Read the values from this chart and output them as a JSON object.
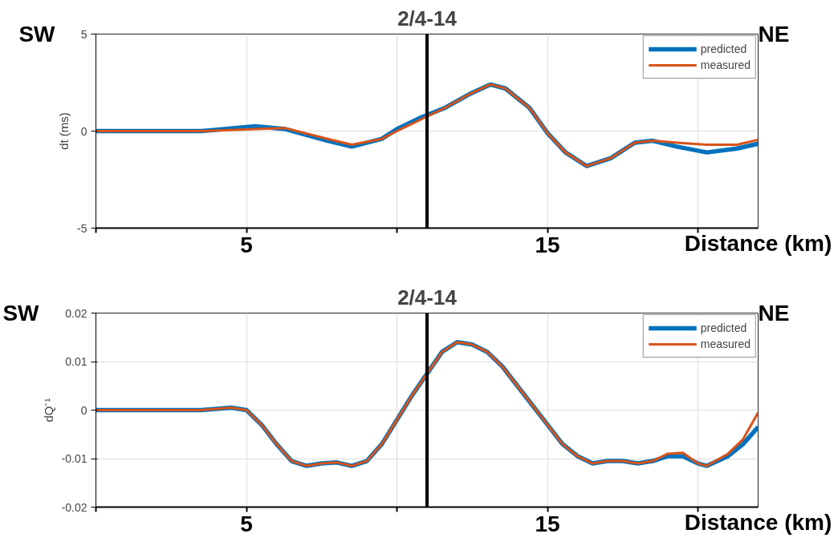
{
  "chart_data": [
    {
      "type": "line",
      "title": "2/4-14",
      "xlabel": "Distance (km)",
      "ylabel": "dt (ms)",
      "annotations": [
        "SW",
        "NE"
      ],
      "x": [
        0,
        3.5,
        5.3,
        6.3,
        7.7,
        8.5,
        9.5,
        10,
        10.8,
        11.6,
        12.4,
        13.1,
        13.6,
        14.4,
        15,
        15.6,
        16.3,
        17.1,
        17.9,
        18.5,
        19.3,
        20.3,
        21.3,
        22
      ],
      "series": [
        {
          "name": "predicted",
          "color": "#0072bd",
          "values": [
            0,
            0,
            0.25,
            0.1,
            -0.5,
            -0.8,
            -0.4,
            0.1,
            0.7,
            1.2,
            1.9,
            2.4,
            2.2,
            1.2,
            -0.1,
            -1.1,
            -1.8,
            -1.4,
            -0.6,
            -0.5,
            -0.8,
            -1.1,
            -0.9,
            -0.65
          ]
        },
        {
          "name": "measured",
          "color": "#d95319",
          "values": [
            0,
            0,
            0.1,
            0.15,
            -0.4,
            -0.7,
            -0.4,
            0.0,
            0.6,
            1.2,
            1.9,
            2.4,
            2.2,
            1.2,
            -0.1,
            -1.1,
            -1.8,
            -1.4,
            -0.6,
            -0.5,
            -0.6,
            -0.7,
            -0.7,
            -0.45
          ]
        }
      ],
      "xlim": [
        0,
        22
      ],
      "ylim": [
        -5,
        5
      ],
      "yticks": [
        -5,
        0,
        5
      ],
      "xticks": [
        {
          "value": 0,
          "label": null
        },
        5,
        {
          "value": 10,
          "label": null
        },
        15,
        {
          "value": 20,
          "label": null
        }
      ],
      "ref_lines": [
        {
          "axis": "x",
          "value": 11,
          "label": null,
          "color": "#000000"
        }
      ],
      "grid": true,
      "legend": "top right",
      "line_style": "solid",
      "marker": "none"
    },
    {
      "type": "line",
      "title": "2/4-14",
      "xlabel": "Distance (km)",
      "ylabel": "dQ⁻¹",
      "annotations": [
        "SW",
        "NE"
      ],
      "x": [
        0,
        3.5,
        4.5,
        5,
        5.5,
        6,
        6.5,
        7,
        7.5,
        8,
        8.5,
        9,
        9.5,
        10,
        10.5,
        11,
        11.5,
        12,
        12.5,
        13,
        13.5,
        14,
        14.5,
        15,
        15.5,
        16,
        16.5,
        17,
        17.5,
        18,
        18.5,
        19,
        19.5,
        20,
        20.3,
        21,
        21.5,
        22
      ],
      "series": [
        {
          "name": "predicted",
          "color": "#0072bd",
          "values": [
            0,
            0,
            0.0005,
            0,
            -0.003,
            -0.007,
            -0.0105,
            -0.0115,
            -0.011,
            -0.0108,
            -0.0115,
            -0.0105,
            -0.007,
            -0.002,
            0.003,
            0.0075,
            0.012,
            0.014,
            0.0135,
            0.012,
            0.009,
            0.005,
            0.001,
            -0.003,
            -0.007,
            -0.0095,
            -0.011,
            -0.0105,
            -0.0105,
            -0.011,
            -0.0105,
            -0.0095,
            -0.0095,
            -0.011,
            -0.0115,
            -0.0095,
            -0.007,
            -0.0035
          ]
        },
        {
          "name": "measured",
          "color": "#d95319",
          "values": [
            0,
            0,
            0.0005,
            0,
            -0.003,
            -0.007,
            -0.0105,
            -0.0115,
            -0.011,
            -0.0108,
            -0.0115,
            -0.0105,
            -0.007,
            -0.002,
            0.003,
            0.0075,
            0.012,
            0.014,
            0.0135,
            0.012,
            0.009,
            0.005,
            0.001,
            -0.003,
            -0.007,
            -0.0095,
            -0.011,
            -0.0105,
            -0.0105,
            -0.011,
            -0.0105,
            -0.009,
            -0.0088,
            -0.011,
            -0.0115,
            -0.009,
            -0.006,
            -0.0005
          ]
        }
      ],
      "xlim": [
        0,
        22
      ],
      "ylim": [
        -0.02,
        0.02
      ],
      "yticks": [
        -0.02,
        -0.01,
        0,
        0.01,
        0.02
      ],
      "xticks": [
        {
          "value": 0,
          "label": null
        },
        5,
        {
          "value": 10,
          "label": null
        },
        15,
        {
          "value": 20,
          "label": null
        }
      ],
      "ref_lines": [
        {
          "axis": "x",
          "value": 11,
          "label": null,
          "color": "#000000"
        }
      ],
      "grid": true,
      "legend": "top right",
      "line_style": "solid",
      "marker": "none"
    }
  ]
}
